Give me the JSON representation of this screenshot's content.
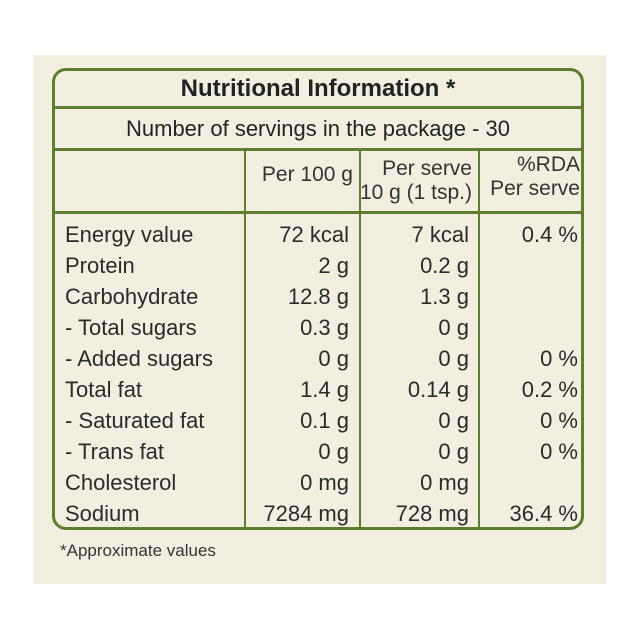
{
  "title": "Nutritional Information *",
  "servings": "Number of servings in the package - 30",
  "headers": {
    "name": "",
    "per100": "Per 100 g",
    "perServe1": "Per serve",
    "perServe2": "10 g (1 tsp.)",
    "rda1": "%RDA",
    "rda2": "Per serve"
  },
  "rows": [
    {
      "name": "Energy value",
      "per100": "72 kcal",
      "serve": "7 kcal",
      "rda": "0.4 %"
    },
    {
      "name": "Protein",
      "per100": "2 g",
      "serve": "0.2 g",
      "rda": ""
    },
    {
      "name": "Carbohydrate",
      "per100": "12.8 g",
      "serve": "1.3 g",
      "rda": ""
    },
    {
      "name": " - Total sugars",
      "per100": "0.3 g",
      "serve": "0 g",
      "rda": ""
    },
    {
      "name": " - Added sugars",
      "per100": "0 g",
      "serve": "0 g",
      "rda": "0 %"
    },
    {
      "name": "Total fat",
      "per100": "1.4 g",
      "serve": "0.14 g",
      "rda": "0.2 %"
    },
    {
      "name": " - Saturated fat",
      "per100": "0.1 g",
      "serve": "0 g",
      "rda": "0 %"
    },
    {
      "name": " - Trans fat",
      "per100": "0 g",
      "serve": "0 g",
      "rda": "0 %"
    },
    {
      "name": "Cholesterol",
      "per100": "0 mg",
      "serve": "0 mg",
      "rda": ""
    },
    {
      "name": "Sodium",
      "per100": "7284 mg",
      "serve": "728 mg",
      "rda": "36.4 %"
    }
  ],
  "footnote": "*Approximate values",
  "colors": {
    "border": "#5c7f2e",
    "background": "#f3efe0"
  }
}
